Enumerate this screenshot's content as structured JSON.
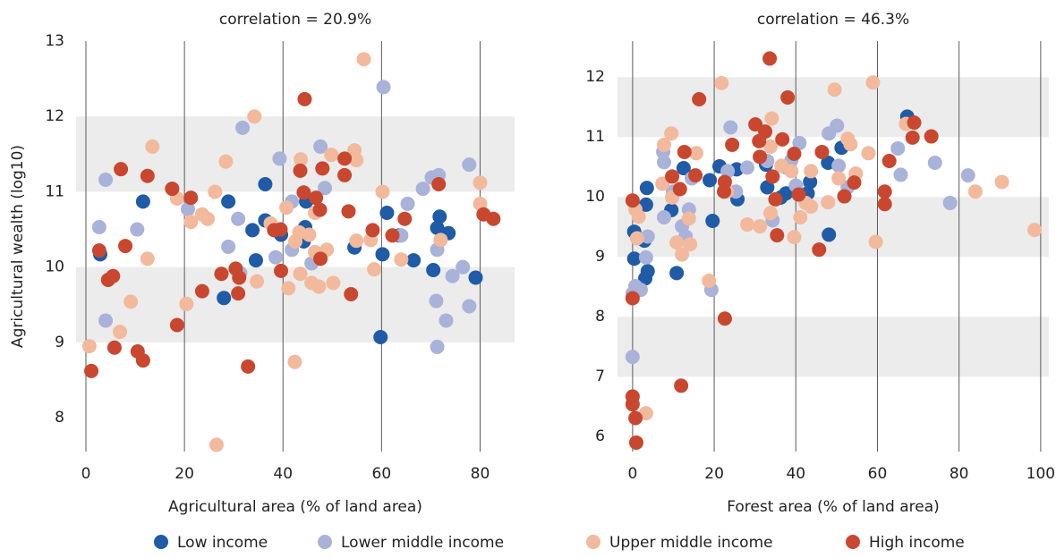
{
  "chart_data": [
    {
      "type": "scatter",
      "title": "correlation = 20.9%",
      "x_label": "Agricultural area (% of land area)",
      "y_label": "Agricultural wealth (log10)",
      "xlim": [
        -2,
        87
      ],
      "ylim": [
        7.55,
        13
      ],
      "xticks": [
        0,
        20,
        40,
        60,
        80
      ],
      "yticks": [
        8,
        9,
        10,
        11,
        12,
        13
      ],
      "grid": true,
      "series": [
        {
          "name": "Low income",
          "color": "#1f5ba6",
          "x": [
            11.6,
            2.9,
            28.9,
            28,
            33.8,
            36.4,
            36.4,
            34.5,
            39.6,
            44.7,
            44.5,
            44.2,
            54.5,
            60.2,
            61.1,
            59.8,
            63.6,
            66.5,
            70.5,
            71.3,
            71.8,
            73.6,
            79.1
          ],
          "y": [
            10.87,
            10.17,
            10.87,
            9.59,
            10.49,
            11.1,
            10.62,
            10.09,
            10.43,
            10.87,
            10.53,
            10.34,
            10.26,
            10.17,
            10.72,
            9.07,
            10.42,
            10.09,
            9.96,
            10.52,
            10.67,
            10.45,
            9.86
          ]
        },
        {
          "name": "Lower middle income",
          "color": "#a9b2d8",
          "x": [
            4,
            2.7,
            4,
            10.4,
            20.7,
            31.8,
            30.9,
            28.9,
            31.3,
            39.3,
            38.5,
            41.8,
            41.8,
            47.6,
            48.5,
            45.8,
            60.4,
            64,
            65.3,
            68.4,
            70.2,
            71.6,
            71.3,
            71.1,
            71.3,
            73.1,
            74.4,
            76.5,
            77.8,
            77.8
          ],
          "y": [
            11.16,
            10.53,
            9.29,
            10.5,
            10.77,
            11.85,
            10.64,
            10.27,
            9.92,
            11.44,
            10.13,
            10.87,
            10.23,
            11.6,
            11.05,
            10.05,
            12.39,
            10.42,
            10.84,
            11.04,
            11.19,
            11.22,
            10.23,
            9.55,
            8.94,
            9.29,
            9.88,
            10.0,
            9.48,
            11.36
          ]
        },
        {
          "name": "Upper middle income",
          "color": "#f2b99d",
          "x": [
            0.7,
            13.5,
            12.5,
            9.1,
            6.9,
            18.5,
            21.3,
            23.6,
            24.7,
            20.4,
            26.2,
            28.4,
            26.5,
            34.2,
            34.7,
            37.5,
            40.7,
            41.1,
            42.4,
            42.5,
            43.5,
            43.3,
            43.6,
            45.3,
            45.8,
            46.5,
            47.3,
            46.5,
            48.9,
            50.2,
            49.8,
            54.5,
            54.9,
            54.9,
            56.4,
            60.2,
            58.5,
            57.8,
            64,
            72,
            80,
            80
          ],
          "y": [
            8.95,
            11.6,
            10.11,
            9.54,
            9.14,
            10.91,
            10.6,
            10.7,
            10.64,
            9.51,
            11.0,
            11.4,
            7.64,
            12.0,
            9.81,
            10.58,
            10.79,
            9.72,
            8.74,
            10.34,
            9.91,
            10.46,
            11.43,
            10.43,
            9.79,
            10.2,
            9.74,
            10.72,
            10.23,
            9.79,
            11.49,
            11.55,
            11.42,
            10.35,
            12.76,
            11.0,
            9.97,
            10.36,
            10.1,
            10.36,
            11.12,
            10.84
          ]
        },
        {
          "name": "High income",
          "color": "#c9472f",
          "x": [
            1.1,
            2.7,
            4.5,
            5.5,
            5.8,
            7.1,
            8,
            10.5,
            11.6,
            12.5,
            17.5,
            18.5,
            21.3,
            23.6,
            27.5,
            30.4,
            30.9,
            31.1,
            32.9,
            38.2,
            39.5,
            39.6,
            43.5,
            44.4,
            44.2,
            46.7,
            47.5,
            47.6,
            48,
            52.5,
            52.5,
            53.3,
            53.8,
            58.2,
            62.2,
            64.7,
            71.6,
            80.7,
            82.7
          ],
          "y": [
            8.62,
            10.22,
            9.83,
            9.88,
            8.93,
            11.3,
            10.28,
            8.88,
            8.76,
            11.21,
            11.04,
            9.23,
            10.92,
            9.68,
            9.91,
            9.98,
            9.65,
            9.86,
            8.68,
            10.49,
            10.5,
            9.95,
            11.28,
            12.23,
            10.99,
            10.92,
            10.76,
            10.11,
            11.31,
            11.22,
            11.44,
            10.74,
            9.64,
            10.49,
            10.42,
            10.64,
            11.1,
            10.7,
            10.64
          ]
        }
      ]
    },
    {
      "type": "scatter",
      "title": "correlation = 46.3%",
      "x_label": "Forest area (% of land area)",
      "xlim": [
        -3.7,
        102
      ],
      "ylim": [
        5.75,
        12.6
      ],
      "xticks": [
        0,
        20,
        40,
        60,
        80,
        100
      ],
      "yticks": [
        6,
        7,
        8,
        9,
        10,
        11,
        12
      ],
      "grid": true,
      "series": [
        {
          "name": "Low income",
          "color": "#1f5ba6",
          "x": [
            0.4,
            0.4,
            2.9,
            3.3,
            3.5,
            3.7,
            3.1,
            9.5,
            10.8,
            12.5,
            19.6,
            18.9,
            21.3,
            25.7,
            25.5,
            32.7,
            33,
            36.3,
            37.6,
            42.9,
            43.5,
            47.9,
            48.1,
            51.2,
            67.3
          ],
          "y": [
            9.42,
            8.97,
            9.27,
            9.87,
            10.15,
            8.76,
            8.64,
            9.78,
            8.73,
            10.48,
            9.6,
            10.28,
            10.51,
            9.96,
            10.46,
            10.54,
            10.16,
            9.99,
            10.06,
            10.06,
            10.25,
            10.57,
            9.37,
            10.82,
            11.34
          ]
        },
        {
          "name": "Lower middle income",
          "color": "#a9b2d8",
          "x": [
            0,
            0,
            0.7,
            2,
            3.3,
            3.7,
            7.5,
            7.7,
            7.7,
            9.9,
            12.1,
            13,
            13.8,
            14.5,
            19.3,
            23.3,
            24,
            25.3,
            28.1,
            33,
            34.3,
            37.6,
            38.9,
            40,
            40.9,
            48.1,
            50.1,
            50.5,
            52.7,
            65,
            65.7,
            74.1,
            77.8,
            82.2
          ],
          "y": [
            8.39,
            7.33,
            8.51,
            8.45,
            8.99,
            9.34,
            10.75,
            10.58,
            9.66,
            10.09,
            9.51,
            9.34,
            9.79,
            10.31,
            8.45,
            10.43,
            11.16,
            10.09,
            10.49,
            10.6,
            9.61,
            10.49,
            10.61,
            10.19,
            10.9,
            11.06,
            11.19,
            10.52,
            10.16,
            10.81,
            10.37,
            10.57,
            9.9,
            10.36
          ]
        },
        {
          "name": "Upper middle income",
          "color": "#f2b99d",
          "x": [
            0.7,
            1.5,
            1.1,
            3.3,
            7.3,
            7.7,
            9.5,
            9.7,
            10.8,
            12.1,
            13.8,
            14.1,
            15.6,
            18.7,
            21.8,
            23.1,
            28.1,
            31.2,
            33.8,
            33.8,
            34.1,
            36.5,
            38.9,
            39.6,
            41.1,
            42.4,
            43.7,
            43.7,
            47.9,
            49.5,
            50.5,
            52.7,
            53.4,
            54.7,
            57.8,
            58.9,
            59.6,
            67,
            84,
            90.5,
            98.5
          ],
          "y": [
            9.79,
            9.67,
            9.31,
            6.39,
            10.22,
            10.87,
            11.06,
            9.99,
            9.24,
            9.04,
            9.64,
            9.21,
            10.73,
            8.6,
            11.9,
            10.09,
            9.54,
            9.51,
            9.73,
            10.84,
            11.31,
            10.52,
            10.43,
            9.33,
            9.66,
            9.9,
            9.84,
            10.43,
            9.91,
            11.79,
            10.31,
            10.97,
            10.88,
            10.39,
            10.73,
            11.91,
            9.25,
            11.22,
            10.09,
            10.25,
            9.45
          ]
        },
        {
          "name": "High income",
          "color": "#c9472f",
          "x": [
            0,
            0,
            0,
            0,
            0.7,
            0.9,
            9.7,
            11.6,
            11.9,
            12.7,
            15.4,
            16.3,
            22.4,
            22.6,
            22.6,
            24.4,
            30.1,
            31,
            32.5,
            31.2,
            33.6,
            34.3,
            35,
            35.4,
            36.7,
            38,
            39.6,
            40.7,
            45.7,
            46.4,
            51.9,
            54.3,
            62.9,
            61.8,
            61.8,
            68.6,
            69,
            73.2
          ],
          "y": [
            9.94,
            8.31,
            6.67,
            6.54,
            6.31,
            5.9,
            10.34,
            10.13,
            6.85,
            10.75,
            10.36,
            11.63,
            10.09,
            7.97,
            10.25,
            10.87,
            11.21,
            10.93,
            11.09,
            10.67,
            12.31,
            10.34,
            9.96,
            9.36,
            10.96,
            11.66,
            10.72,
            10.04,
            9.12,
            10.75,
            10.01,
            10.24,
            10.6,
            10.09,
            9.88,
            10.99,
            11.24,
            11.01
          ]
        }
      ]
    }
  ]
}
